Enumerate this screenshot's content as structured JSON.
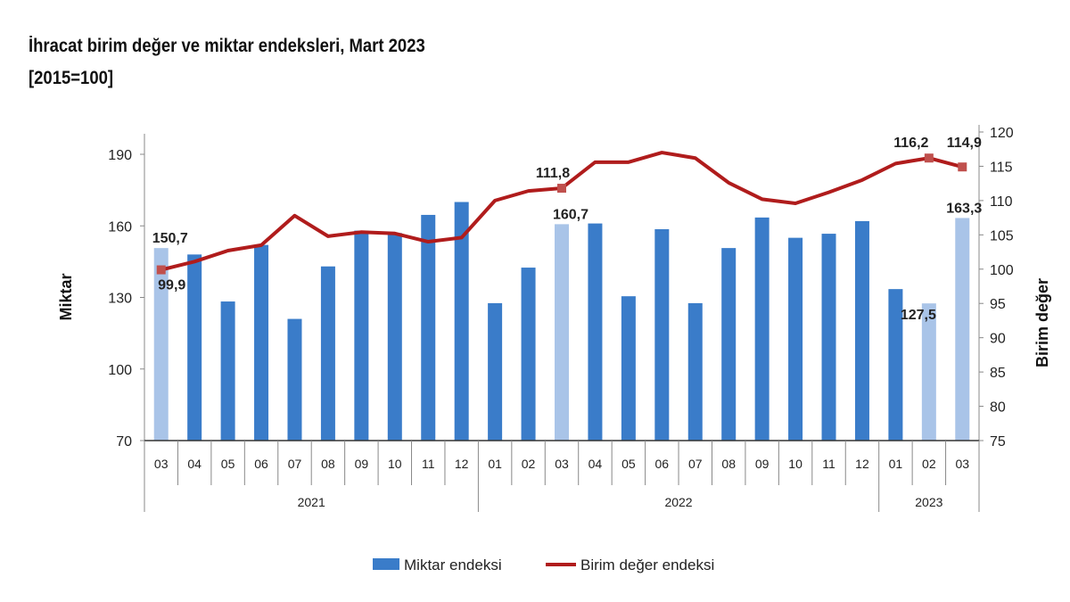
{
  "chart_data": {
    "type": "bar+line",
    "title": "İhracat birim değer ve miktar endeksleri, Mart 2023",
    "subtitle": "[2015=100]",
    "ylabel_left": "Miktar",
    "ylabel_right": "Birim değer",
    "ylim_left": [
      70,
      190
    ],
    "yticks_left": [
      70,
      100,
      130,
      160,
      190
    ],
    "ylim_right": [
      75,
      120
    ],
    "yticks_right": [
      75,
      80,
      85,
      90,
      95,
      100,
      105,
      110,
      115,
      120
    ],
    "months": [
      "03",
      "04",
      "05",
      "06",
      "07",
      "08",
      "09",
      "10",
      "11",
      "12",
      "01",
      "02",
      "03",
      "04",
      "05",
      "06",
      "07",
      "08",
      "09",
      "10",
      "11",
      "12",
      "01",
      "02",
      "03"
    ],
    "years": [
      {
        "label": "2021",
        "count": 10
      },
      {
        "label": "2022",
        "count": 12
      },
      {
        "label": "2023",
        "count": 3
      }
    ],
    "series": [
      {
        "name": "Miktar endeksi",
        "type": "bar",
        "color": "#3a7cc9",
        "highlight_color": "#a9c4e8",
        "values": [
          150.7,
          148,
          128.3,
          152,
          121,
          143,
          158,
          157,
          164.6,
          170,
          127.6,
          142.5,
          160.7,
          161,
          130.5,
          158.6,
          127.6,
          150.7,
          163.5,
          155,
          156.7,
          162,
          133.5,
          127.5,
          163.3
        ],
        "highlighted": [
          0,
          12,
          23,
          24
        ],
        "labels": {
          "0": "150,7",
          "12": "160,7",
          "23": "127,5",
          "24": "163,3"
        }
      },
      {
        "name": "Birim değer endeksi",
        "type": "line",
        "color": "#b01c1c",
        "values": [
          99.9,
          101.1,
          102.7,
          103.5,
          107.8,
          104.8,
          105.4,
          105.2,
          104,
          104.6,
          110,
          111.4,
          111.8,
          115.6,
          115.6,
          117,
          116.2,
          112.6,
          110.2,
          109.6,
          111.2,
          113,
          115.4,
          116.2,
          114.9
        ],
        "markers": [
          0,
          12,
          23,
          24
        ],
        "labels": {
          "0": "99,9",
          "12": "111,8",
          "23": "116,2",
          "24": "114,9"
        }
      }
    ],
    "legend": "bottom"
  }
}
